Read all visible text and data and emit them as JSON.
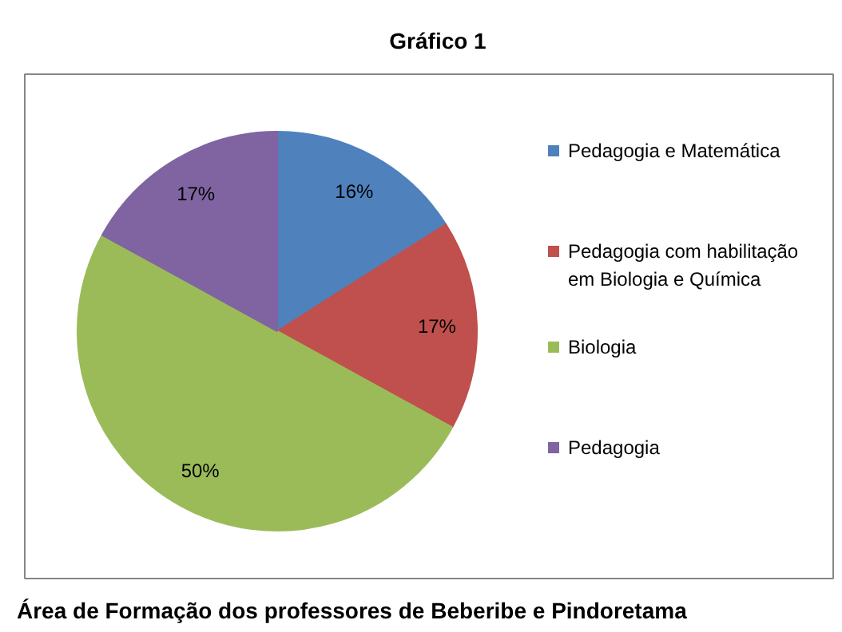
{
  "chart_data": {
    "type": "pie",
    "title": "Gráfico 1",
    "categories": [
      "Pedagogia e Matemática",
      "Pedagogia com habilitação em Biologia e Química",
      "Biologia",
      "Pedagogia"
    ],
    "values": [
      16,
      17,
      50,
      17
    ],
    "colors": [
      "#4f81bd",
      "#c0504d",
      "#9bbb59",
      "#8064a2"
    ],
    "value_labels": [
      "16%",
      "17%",
      "50%",
      "17%"
    ],
    "legend": "right",
    "annotations": [
      "Área de Formação dos professores de Beberibe e  Pindoretama"
    ]
  }
}
